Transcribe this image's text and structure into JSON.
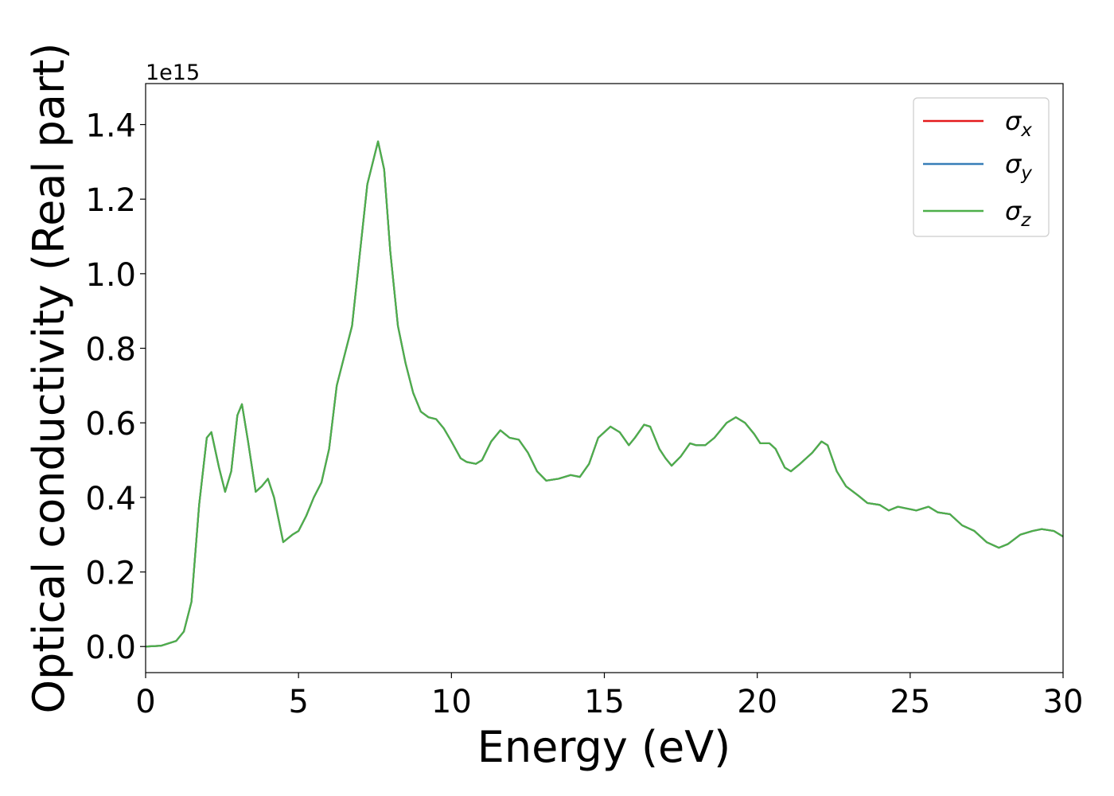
{
  "chart_data": {
    "type": "line",
    "xlabel": "Energy (eV)",
    "ylabel": "Optical conductivity (Real part)",
    "y_offset_label": "1e15",
    "xlim": [
      0,
      30
    ],
    "xticks": [
      0,
      5,
      10,
      15,
      20,
      25,
      30
    ],
    "ylim": [
      -0.07,
      1.51
    ],
    "yticks": [
      {
        "value": 0,
        "label": "0.0"
      },
      0.2,
      0.4,
      0.6,
      0.8,
      {
        "value": 1,
        "label": "1.0"
      },
      1.2,
      1.4
    ],
    "grid": false,
    "legend": "upper right",
    "x": [
      0,
      0.5,
      1.0,
      1.25,
      1.5,
      1.75,
      2.0,
      2.15,
      2.4,
      2.6,
      2.8,
      3.0,
      3.15,
      3.35,
      3.6,
      3.8,
      4.0,
      4.2,
      4.5,
      4.8,
      5.0,
      5.25,
      5.5,
      5.75,
      6.0,
      6.25,
      6.5,
      6.75,
      7.0,
      7.25,
      7.6,
      7.8,
      8.0,
      8.25,
      8.5,
      8.75,
      9.0,
      9.25,
      9.5,
      9.75,
      10.0,
      10.3,
      10.5,
      10.8,
      11.0,
      11.3,
      11.6,
      11.9,
      12.2,
      12.5,
      12.8,
      13.1,
      13.5,
      13.9,
      14.2,
      14.5,
      14.8,
      15.2,
      15.5,
      15.8,
      16.0,
      16.3,
      16.5,
      16.8,
      17.0,
      17.2,
      17.5,
      17.8,
      18.0,
      18.3,
      18.6,
      19.0,
      19.3,
      19.6,
      19.9,
      20.1,
      20.4,
      20.6,
      20.9,
      21.1,
      21.4,
      21.8,
      22.1,
      22.3,
      22.6,
      22.9,
      23.3,
      23.6,
      24.0,
      24.3,
      24.6,
      24.9,
      25.2,
      25.6,
      25.9,
      26.3,
      26.7,
      27.1,
      27.5,
      27.9,
      28.2,
      28.6,
      29.0,
      29.3,
      29.7,
      30.0
    ],
    "series": [
      {
        "name": "σx",
        "color": "#e41a1c",
        "values": [
          0.0,
          0.002,
          0.015,
          0.04,
          0.12,
          0.38,
          0.56,
          0.575,
          0.48,
          0.415,
          0.47,
          0.62,
          0.65,
          0.55,
          0.415,
          0.43,
          0.45,
          0.4,
          0.28,
          0.3,
          0.31,
          0.35,
          0.4,
          0.44,
          0.53,
          0.7,
          0.78,
          0.86,
          1.05,
          1.24,
          1.355,
          1.28,
          1.06,
          0.86,
          0.76,
          0.68,
          0.63,
          0.615,
          0.61,
          0.585,
          0.55,
          0.505,
          0.495,
          0.49,
          0.5,
          0.55,
          0.58,
          0.56,
          0.555,
          0.52,
          0.47,
          0.445,
          0.45,
          0.46,
          0.455,
          0.49,
          0.56,
          0.59,
          0.575,
          0.54,
          0.56,
          0.595,
          0.59,
          0.53,
          0.505,
          0.485,
          0.51,
          0.545,
          0.54,
          0.54,
          0.56,
          0.6,
          0.615,
          0.6,
          0.57,
          0.545,
          0.545,
          0.53,
          0.48,
          0.47,
          0.49,
          0.52,
          0.55,
          0.54,
          0.47,
          0.43,
          0.405,
          0.385,
          0.38,
          0.365,
          0.375,
          0.37,
          0.365,
          0.375,
          0.36,
          0.355,
          0.325,
          0.31,
          0.28,
          0.265,
          0.275,
          0.3,
          0.31,
          0.315,
          0.31,
          0.295
        ]
      },
      {
        "name": "σy",
        "color": "#377eb8",
        "values": [
          0.0,
          0.002,
          0.015,
          0.04,
          0.12,
          0.38,
          0.56,
          0.575,
          0.48,
          0.415,
          0.47,
          0.62,
          0.65,
          0.55,
          0.415,
          0.43,
          0.45,
          0.4,
          0.28,
          0.3,
          0.31,
          0.35,
          0.4,
          0.44,
          0.53,
          0.7,
          0.78,
          0.86,
          1.05,
          1.24,
          1.355,
          1.28,
          1.06,
          0.86,
          0.76,
          0.68,
          0.63,
          0.615,
          0.61,
          0.585,
          0.55,
          0.505,
          0.495,
          0.49,
          0.5,
          0.55,
          0.58,
          0.56,
          0.555,
          0.52,
          0.47,
          0.445,
          0.45,
          0.46,
          0.455,
          0.49,
          0.56,
          0.59,
          0.575,
          0.54,
          0.56,
          0.595,
          0.59,
          0.53,
          0.505,
          0.485,
          0.51,
          0.545,
          0.54,
          0.54,
          0.56,
          0.6,
          0.615,
          0.6,
          0.57,
          0.545,
          0.545,
          0.53,
          0.48,
          0.47,
          0.49,
          0.52,
          0.55,
          0.54,
          0.47,
          0.43,
          0.405,
          0.385,
          0.38,
          0.365,
          0.375,
          0.37,
          0.365,
          0.375,
          0.36,
          0.355,
          0.325,
          0.31,
          0.28,
          0.265,
          0.275,
          0.3,
          0.31,
          0.315,
          0.31,
          0.295
        ]
      },
      {
        "name": "σz",
        "color": "#4daf4a",
        "values": [
          0.0,
          0.002,
          0.015,
          0.04,
          0.12,
          0.38,
          0.56,
          0.575,
          0.48,
          0.415,
          0.47,
          0.62,
          0.65,
          0.55,
          0.415,
          0.43,
          0.45,
          0.4,
          0.28,
          0.3,
          0.31,
          0.35,
          0.4,
          0.44,
          0.53,
          0.7,
          0.78,
          0.86,
          1.05,
          1.24,
          1.355,
          1.28,
          1.06,
          0.86,
          0.76,
          0.68,
          0.63,
          0.615,
          0.61,
          0.585,
          0.55,
          0.505,
          0.495,
          0.49,
          0.5,
          0.55,
          0.58,
          0.56,
          0.555,
          0.52,
          0.47,
          0.445,
          0.45,
          0.46,
          0.455,
          0.49,
          0.56,
          0.59,
          0.575,
          0.54,
          0.56,
          0.595,
          0.59,
          0.53,
          0.505,
          0.485,
          0.51,
          0.545,
          0.54,
          0.54,
          0.56,
          0.6,
          0.615,
          0.6,
          0.57,
          0.545,
          0.545,
          0.53,
          0.48,
          0.47,
          0.49,
          0.52,
          0.55,
          0.54,
          0.47,
          0.43,
          0.405,
          0.385,
          0.38,
          0.365,
          0.375,
          0.37,
          0.365,
          0.375,
          0.36,
          0.355,
          0.325,
          0.31,
          0.28,
          0.265,
          0.275,
          0.3,
          0.31,
          0.315,
          0.31,
          0.295
        ]
      }
    ]
  }
}
